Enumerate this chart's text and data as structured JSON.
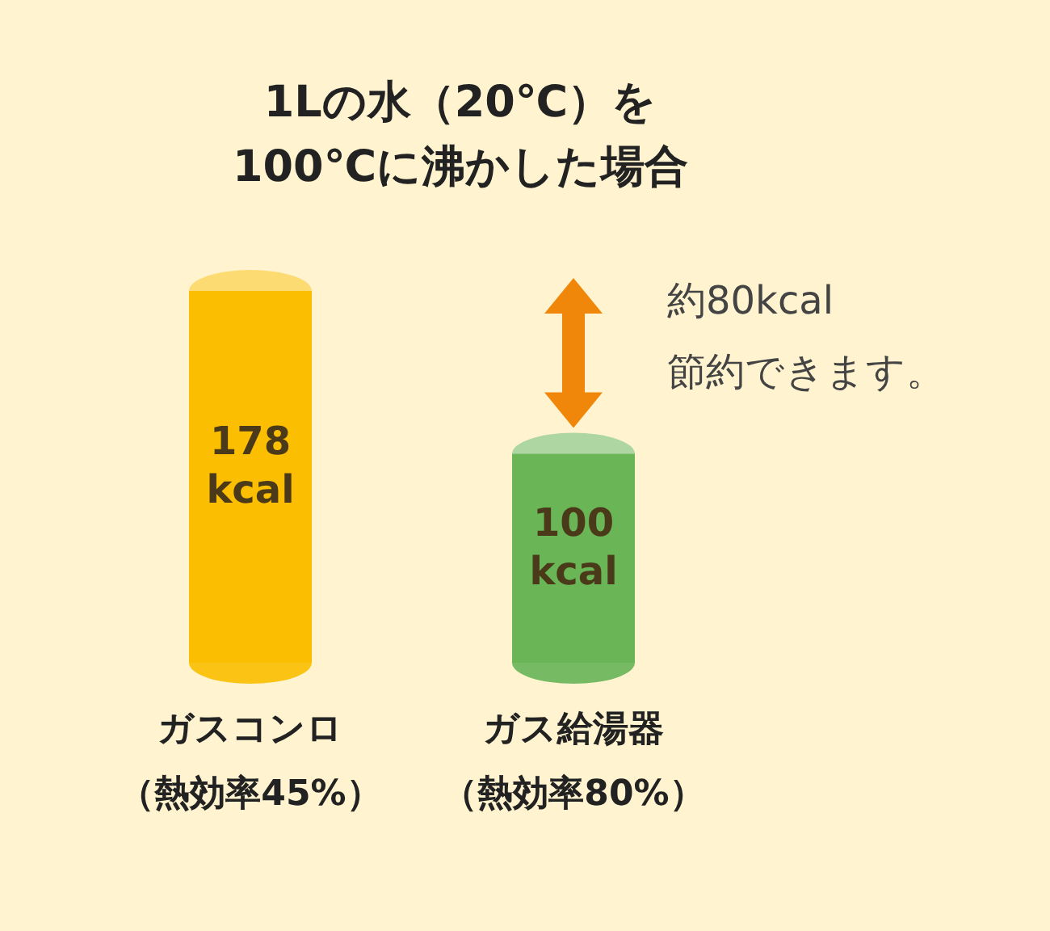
{
  "chart_data": {
    "type": "bar",
    "title": "1Lの水（20℃）を\n100℃に沸かした場合",
    "categories": [
      "ガスコンロ（熱効率45%）",
      "ガス給湯器（熱効率80%）"
    ],
    "values": [
      178,
      100
    ],
    "colors": [
      "#fbbe00",
      "#6ab556"
    ],
    "value_labels": [
      "178\nkcal",
      "100\nkcal"
    ],
    "annotations": [
      "約80kcal\n節約できます。"
    ],
    "grid": false,
    "legend": false
  }
}
